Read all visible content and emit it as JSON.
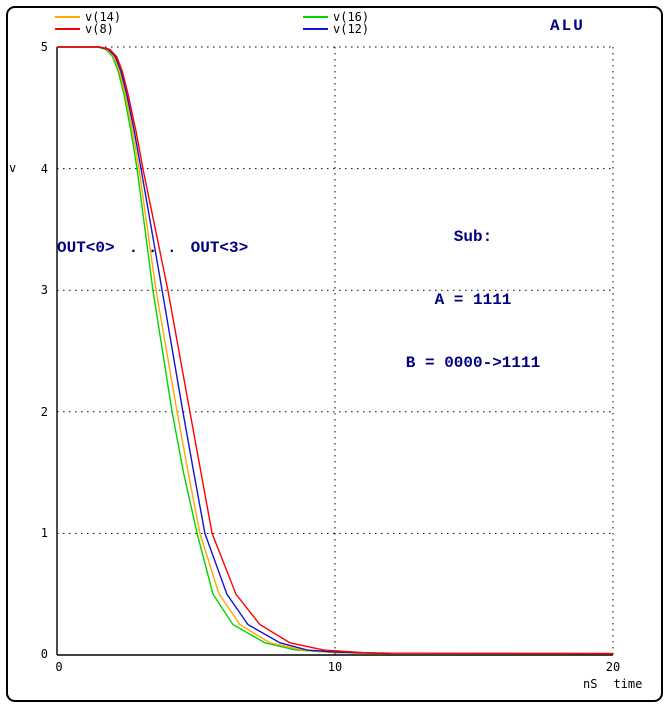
{
  "title": "ALU",
  "axes": {
    "ylabel": "v",
    "xunit": "nS",
    "xlabel": "time",
    "ytick_labels": [
      "5",
      "4",
      "3",
      "2",
      "1",
      "0"
    ],
    "xtick_labels": [
      "0",
      "10",
      "20"
    ]
  },
  "annotations": {
    "out_left": "OUT<0>",
    "out_dots": ". . .",
    "out_right": "OUT<3>",
    "sub_line1": "Sub:",
    "sub_line2": "A = 1111",
    "sub_line3": "B = 0000->1111"
  },
  "colors": {
    "annotation_navy": "#000080",
    "axis_black": "#000000"
  },
  "chart_data": {
    "type": "line",
    "title": "ALU",
    "ylabel": "v",
    "xlabel": "time",
    "xunit": "nS",
    "xlim": [
      0,
      20
    ],
    "ylim": [
      0,
      5
    ],
    "xticks": [
      0,
      10,
      20
    ],
    "yticks": [
      0,
      1,
      2,
      3,
      4,
      5
    ],
    "grid": "dotted, horizontal at v=1..5, vertical at t=10 and t=20",
    "legend_position": "top",
    "series": [
      {
        "name": "v(14)",
        "color": "#ffa800",
        "points": [
          [
            0,
            5
          ],
          [
            1.5,
            5
          ],
          [
            1.8,
            4.98
          ],
          [
            2.05,
            4.92
          ],
          [
            2.25,
            4.8
          ],
          [
            2.45,
            4.62
          ],
          [
            2.7,
            4.33
          ],
          [
            2.95,
            4.0
          ],
          [
            3.56,
            3.0
          ],
          [
            4.32,
            2.0
          ],
          [
            4.72,
            1.5
          ],
          [
            5.14,
            1.0
          ],
          [
            5.83,
            0.5
          ],
          [
            6.58,
            0.25
          ],
          [
            7.66,
            0.1
          ],
          [
            8.8,
            0.04
          ],
          [
            10,
            0.02
          ],
          [
            12,
            0.01
          ]
        ]
      },
      {
        "name": "v(8)",
        "color": "#ff0000",
        "points": [
          [
            0,
            5
          ],
          [
            1.55,
            5
          ],
          [
            1.9,
            4.98
          ],
          [
            2.15,
            4.92
          ],
          [
            2.35,
            4.8
          ],
          [
            2.57,
            4.6
          ],
          [
            2.85,
            4.3
          ],
          [
            3.09,
            4.0
          ],
          [
            3.99,
            3.0
          ],
          [
            4.78,
            2.0
          ],
          [
            5.18,
            1.5
          ],
          [
            5.58,
            1.0
          ],
          [
            6.44,
            0.5
          ],
          [
            7.3,
            0.25
          ],
          [
            8.38,
            0.1
          ],
          [
            9.6,
            0.04
          ],
          [
            11,
            0.02
          ],
          [
            12,
            0.015
          ],
          [
            20,
            0.012
          ]
        ]
      },
      {
        "name": "v(16)",
        "color": "#00d400",
        "points": [
          [
            0,
            5
          ],
          [
            1.45,
            5
          ],
          [
            1.75,
            4.98
          ],
          [
            2.0,
            4.92
          ],
          [
            2.2,
            4.8
          ],
          [
            2.4,
            4.62
          ],
          [
            2.65,
            4.32
          ],
          [
            2.88,
            4.0
          ],
          [
            3.45,
            3.0
          ],
          [
            4.14,
            2.0
          ],
          [
            4.55,
            1.5
          ],
          [
            5.04,
            1.0
          ],
          [
            5.61,
            0.5
          ],
          [
            6.33,
            0.25
          ],
          [
            7.48,
            0.1
          ],
          [
            8.6,
            0.04
          ],
          [
            10,
            0.02
          ],
          [
            12,
            0.01
          ]
        ]
      },
      {
        "name": "v(12)",
        "color": "#1414cc",
        "points": [
          [
            0,
            5
          ],
          [
            1.5,
            5
          ],
          [
            1.85,
            4.98
          ],
          [
            2.1,
            4.92
          ],
          [
            2.3,
            4.8
          ],
          [
            2.5,
            4.62
          ],
          [
            2.77,
            4.32
          ],
          [
            3.02,
            4.0
          ],
          [
            3.78,
            3.0
          ],
          [
            4.53,
            2.0
          ],
          [
            4.92,
            1.5
          ],
          [
            5.32,
            1.0
          ],
          [
            6.11,
            0.5
          ],
          [
            6.87,
            0.25
          ],
          [
            8.02,
            0.1
          ],
          [
            9.0,
            0.04
          ],
          [
            10,
            0.025
          ],
          [
            12,
            0.012
          ]
        ]
      }
    ]
  }
}
